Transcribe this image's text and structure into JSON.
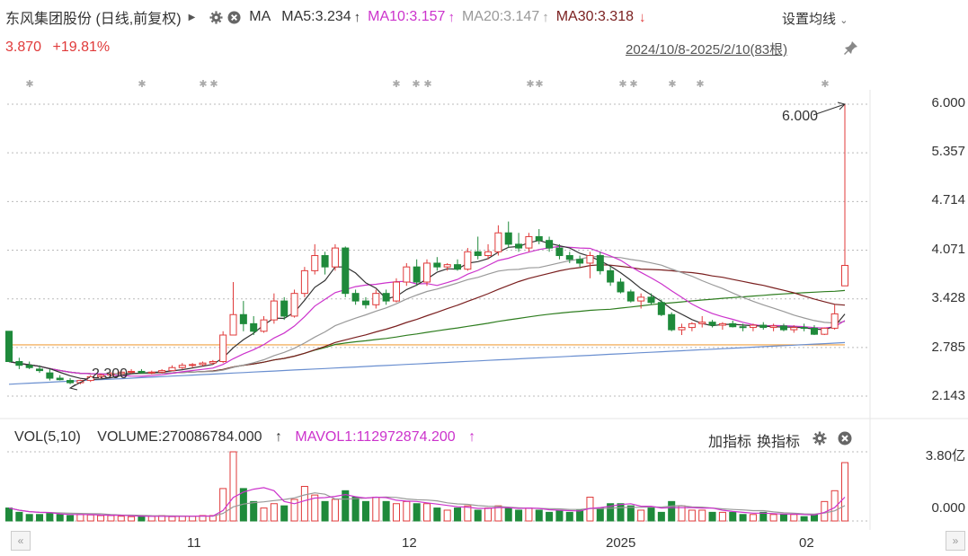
{
  "header": {
    "title": "东风集团股份 (日线,前复权)",
    "ma_label": "MA",
    "ma5": "MA5:3.234",
    "ma10": "MA10:3.157",
    "ma20": "MA20:3.147",
    "ma30": "MA30:3.318",
    "setting_label": "设置均线",
    "price": "3.870",
    "change": "+19.81%",
    "range": "2024/10/8-2025/2/10(83根)",
    "colors": {
      "up": "#e03a3a",
      "down": "#1f8a3b",
      "ma5": "#333333",
      "ma10": "#cc33cc",
      "ma20": "#999999",
      "ma30": "#7a1f1f",
      "ma60": "#2e7d1f",
      "ma120": "#6a8fd0",
      "orange": "#f0a040"
    }
  },
  "y_axis": [
    "6.000",
    "5.357",
    "4.714",
    "4.071",
    "3.428",
    "2.785",
    "2.143"
  ],
  "annotations": {
    "high": "6.000",
    "low": "2.300"
  },
  "volume": {
    "name": "VOL(5,10)",
    "volume_text": "VOLUME:270086784.000",
    "mavol_text": "MAVOL1:112972874.200",
    "y_top": "3.80亿",
    "y_bottom": "0.000",
    "add_indicator": "加指标",
    "switch_indicator": "换指标"
  },
  "x_axis": [
    "11",
    "12",
    "2025",
    "02"
  ],
  "chart_data": {
    "type": "candlestick",
    "ylim": [
      2.0,
      6.2
    ],
    "candles": [
      [
        3.0,
        3.0,
        2.6,
        2.6
      ],
      [
        2.6,
        2.65,
        2.5,
        2.55
      ],
      [
        2.55,
        2.6,
        2.5,
        2.52
      ],
      [
        2.5,
        2.55,
        2.45,
        2.48
      ],
      [
        2.45,
        2.5,
        2.35,
        2.38
      ],
      [
        2.38,
        2.42,
        2.35,
        2.36
      ],
      [
        2.35,
        2.38,
        2.3,
        2.32
      ],
      [
        2.32,
        2.36,
        2.3,
        2.35
      ],
      [
        2.35,
        2.42,
        2.33,
        2.4
      ],
      [
        2.4,
        2.44,
        2.38,
        2.42
      ],
      [
        2.42,
        2.46,
        2.4,
        2.44
      ],
      [
        2.44,
        2.48,
        2.42,
        2.46
      ],
      [
        2.46,
        2.5,
        2.44,
        2.47
      ],
      [
        2.47,
        2.5,
        2.44,
        2.45
      ],
      [
        2.45,
        2.48,
        2.43,
        2.46
      ],
      [
        2.46,
        2.5,
        2.44,
        2.48
      ],
      [
        2.48,
        2.55,
        2.47,
        2.52
      ],
      [
        2.52,
        2.58,
        2.5,
        2.55
      ],
      [
        2.55,
        2.58,
        2.52,
        2.56
      ],
      [
        2.56,
        2.6,
        2.54,
        2.58
      ],
      [
        2.58,
        2.62,
        2.56,
        2.6
      ],
      [
        2.6,
        3.0,
        2.58,
        2.95
      ],
      [
        2.95,
        3.65,
        2.95,
        3.22
      ],
      [
        3.22,
        3.4,
        3.0,
        3.1
      ],
      [
        3.1,
        3.2,
        2.95,
        3.0
      ],
      [
        3.0,
        3.2,
        2.98,
        3.15
      ],
      [
        3.15,
        3.5,
        3.1,
        3.4
      ],
      [
        3.4,
        3.45,
        3.15,
        3.2
      ],
      [
        3.2,
        3.55,
        3.18,
        3.5
      ],
      [
        3.5,
        3.85,
        3.45,
        3.8
      ],
      [
        3.8,
        4.15,
        3.75,
        4.0
      ],
      [
        4.0,
        4.05,
        3.75,
        3.85
      ],
      [
        3.85,
        4.15,
        3.8,
        4.1
      ],
      [
        4.1,
        4.12,
        3.45,
        3.5
      ],
      [
        3.5,
        3.55,
        3.35,
        3.4
      ],
      [
        3.4,
        3.45,
        3.3,
        3.35
      ],
      [
        3.35,
        3.55,
        3.3,
        3.5
      ],
      [
        3.5,
        3.55,
        3.35,
        3.4
      ],
      [
        3.4,
        3.7,
        3.38,
        3.65
      ],
      [
        3.65,
        3.9,
        3.6,
        3.85
      ],
      [
        3.85,
        3.95,
        3.6,
        3.65
      ],
      [
        3.65,
        3.95,
        3.6,
        3.9
      ],
      [
        3.9,
        3.98,
        3.8,
        3.85
      ],
      [
        3.85,
        3.9,
        3.8,
        3.88
      ],
      [
        3.88,
        3.95,
        3.8,
        3.82
      ],
      [
        3.82,
        4.1,
        3.8,
        4.05
      ],
      [
        4.05,
        4.25,
        3.95,
        4.0
      ],
      [
        4.0,
        4.15,
        3.95,
        4.05
      ],
      [
        4.05,
        4.4,
        4.0,
        4.3
      ],
      [
        4.3,
        4.45,
        4.1,
        4.15
      ],
      [
        4.15,
        4.3,
        4.05,
        4.1
      ],
      [
        4.1,
        4.3,
        4.05,
        4.25
      ],
      [
        4.25,
        4.35,
        4.15,
        4.2
      ],
      [
        4.2,
        4.25,
        4.05,
        4.1
      ],
      [
        4.1,
        4.15,
        3.95,
        4.0
      ],
      [
        4.0,
        4.05,
        3.9,
        3.95
      ],
      [
        3.95,
        4.0,
        3.85,
        3.9
      ],
      [
        3.9,
        4.05,
        3.7,
        4.0
      ],
      [
        4.0,
        4.05,
        3.75,
        3.8
      ],
      [
        3.8,
        3.85,
        3.6,
        3.65
      ],
      [
        3.65,
        3.7,
        3.5,
        3.52
      ],
      [
        3.52,
        3.55,
        3.38,
        3.4
      ],
      [
        3.4,
        3.5,
        3.3,
        3.45
      ],
      [
        3.45,
        3.5,
        3.35,
        3.38
      ],
      [
        3.38,
        3.42,
        3.2,
        3.22
      ],
      [
        3.22,
        3.25,
        3.0,
        3.02
      ],
      [
        3.02,
        3.1,
        2.95,
        3.05
      ],
      [
        3.05,
        3.12,
        3.0,
        3.1
      ],
      [
        3.1,
        3.2,
        3.05,
        3.12
      ],
      [
        3.12,
        3.15,
        3.05,
        3.08
      ],
      [
        3.08,
        3.12,
        3.02,
        3.1
      ],
      [
        3.1,
        3.14,
        3.05,
        3.06
      ],
      [
        3.06,
        3.1,
        3.0,
        3.05
      ],
      [
        3.05,
        3.1,
        3.0,
        3.08
      ],
      [
        3.08,
        3.12,
        3.02,
        3.05
      ],
      [
        3.05,
        3.1,
        3.0,
        3.07
      ],
      [
        3.07,
        3.1,
        3.0,
        3.02
      ],
      [
        3.02,
        3.08,
        2.98,
        3.05
      ],
      [
        3.05,
        3.1,
        3.0,
        3.04
      ],
      [
        3.04,
        3.08,
        2.95,
        2.96
      ],
      [
        2.96,
        3.05,
        2.95,
        3.04
      ],
      [
        3.04,
        3.35,
        3.02,
        3.23
      ],
      [
        3.6,
        6.0,
        3.6,
        3.87
      ]
    ],
    "volumes": [
      0.6,
      0.4,
      0.3,
      0.3,
      0.35,
      0.3,
      0.25,
      0.3,
      0.28,
      0.25,
      0.25,
      0.22,
      0.2,
      0.2,
      0.22,
      0.25,
      0.2,
      0.22,
      0.22,
      0.25,
      0.25,
      1.5,
      3.2,
      1.5,
      0.9,
      0.6,
      0.8,
      0.7,
      1.0,
      1.6,
      1.2,
      0.9,
      1.0,
      1.4,
      1.1,
      0.9,
      1.1,
      0.9,
      0.8,
      0.9,
      0.8,
      0.8,
      0.6,
      0.5,
      0.6,
      0.7,
      0.5,
      0.6,
      0.7,
      0.6,
      0.5,
      0.6,
      0.5,
      0.4,
      0.5,
      0.4,
      0.5,
      1.1,
      0.6,
      0.8,
      0.8,
      0.7,
      0.5,
      0.6,
      0.4,
      0.9,
      0.7,
      0.5,
      0.5,
      0.4,
      0.4,
      0.4,
      0.3,
      0.3,
      0.4,
      0.3,
      0.3,
      0.3,
      0.2,
      0.3,
      0.9,
      1.4,
      2.7
    ]
  }
}
